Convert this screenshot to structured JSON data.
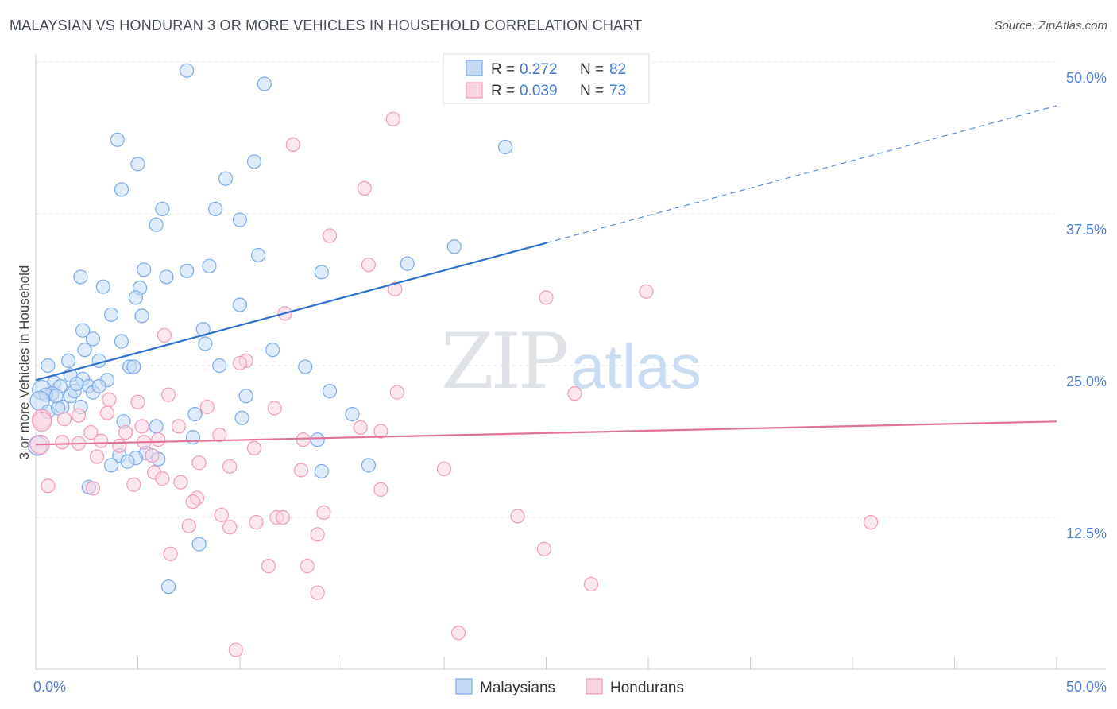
{
  "title": "MALAYSIAN VS HONDURAN 3 OR MORE VEHICLES IN HOUSEHOLD CORRELATION CHART",
  "source": "Source: ZipAtlas.com",
  "watermark": {
    "zip": "ZIP",
    "atlas": "atlas"
  },
  "chart_data": {
    "type": "scatter",
    "ylabel": "3 or more Vehicles in Household",
    "xlabel": "",
    "xlim": [
      0,
      50
    ],
    "ylim": [
      0,
      50
    ],
    "x_tick_labels": [
      "0.0%",
      "50.0%"
    ],
    "y_tick_labels": [
      "12.5%",
      "25.0%",
      "37.5%",
      "50.0%"
    ],
    "y_tick_values": [
      12.5,
      25,
      37.5,
      50
    ],
    "grid": true,
    "legend_position": "top-center",
    "stats": [
      {
        "r_label": "R =",
        "r": "0.272",
        "n_label": "N =",
        "n": "82"
      },
      {
        "r_label": "R =",
        "r": "0.039",
        "n_label": "N =",
        "n": "73"
      }
    ],
    "series": [
      {
        "name": "Malaysians",
        "color": "#7aaae8",
        "fill": "#c5d9f5",
        "trend": {
          "x0": 0,
          "y0": 23.8,
          "x1": 25,
          "y1": 35.1,
          "dash_to_x": 50,
          "dash_to_y": 46.4,
          "color": "#2f6fcd"
        },
        "points": [
          [
            7.4,
            49.3
          ],
          [
            11.2,
            48.2
          ],
          [
            4.0,
            43.6
          ],
          [
            5.0,
            41.6
          ],
          [
            10.7,
            41.8
          ],
          [
            9.3,
            40.4
          ],
          [
            23.0,
            43.0
          ],
          [
            4.2,
            39.5
          ],
          [
            6.2,
            37.9
          ],
          [
            8.8,
            37.9
          ],
          [
            5.9,
            36.6
          ],
          [
            10.0,
            37.0
          ],
          [
            20.5,
            34.8
          ],
          [
            18.2,
            33.4
          ],
          [
            10.9,
            34.1
          ],
          [
            8.5,
            33.2
          ],
          [
            7.4,
            32.8
          ],
          [
            5.3,
            32.9
          ],
          [
            14.0,
            32.7
          ],
          [
            6.4,
            32.3
          ],
          [
            2.2,
            32.3
          ],
          [
            3.3,
            31.5
          ],
          [
            5.1,
            31.4
          ],
          [
            4.9,
            30.6
          ],
          [
            10.0,
            30.0
          ],
          [
            3.7,
            29.2
          ],
          [
            5.2,
            29.1
          ],
          [
            2.3,
            27.9
          ],
          [
            8.2,
            28.0
          ],
          [
            2.8,
            27.2
          ],
          [
            4.2,
            27.0
          ],
          [
            8.3,
            26.8
          ],
          [
            2.4,
            26.3
          ],
          [
            11.6,
            26.3
          ],
          [
            1.6,
            25.4
          ],
          [
            3.1,
            25.4
          ],
          [
            0.6,
            25.0
          ],
          [
            4.6,
            24.9
          ],
          [
            4.8,
            24.9
          ],
          [
            9.0,
            25.0
          ],
          [
            13.2,
            24.9
          ],
          [
            1.7,
            24.2
          ],
          [
            2.3,
            23.9
          ],
          [
            3.5,
            23.8
          ],
          [
            0.9,
            23.6
          ],
          [
            2.6,
            23.3
          ],
          [
            1.2,
            23.3
          ],
          [
            0.3,
            23.0
          ],
          [
            0.8,
            22.7
          ],
          [
            2.8,
            22.8
          ],
          [
            14.4,
            22.9
          ],
          [
            0.5,
            22.6
          ],
          [
            1.7,
            22.5
          ],
          [
            10.3,
            22.5
          ],
          [
            0.2,
            22.1
          ],
          [
            1.3,
            21.6
          ],
          [
            0.6,
            21.2
          ],
          [
            15.5,
            21.0
          ],
          [
            7.8,
            21.0
          ],
          [
            10.1,
            20.7
          ],
          [
            2.2,
            21.6
          ],
          [
            1.1,
            21.5
          ],
          [
            5.9,
            20.0
          ],
          [
            4.3,
            20.4
          ],
          [
            7.7,
            19.1
          ],
          [
            13.8,
            18.9
          ],
          [
            0.1,
            18.4
          ],
          [
            5.4,
            17.8
          ],
          [
            4.1,
            17.6
          ],
          [
            4.9,
            17.4
          ],
          [
            6.0,
            17.3
          ],
          [
            3.7,
            16.8
          ],
          [
            16.3,
            16.8
          ],
          [
            14.0,
            16.3
          ],
          [
            2.6,
            15.0
          ],
          [
            8.0,
            10.3
          ],
          [
            6.5,
            6.8
          ],
          [
            1.9,
            22.9
          ],
          [
            3.1,
            23.3
          ],
          [
            4.5,
            17.1
          ],
          [
            1.0,
            22.5
          ],
          [
            2.0,
            23.5
          ]
        ]
      },
      {
        "name": "Hondurans",
        "color": "#f09ab8",
        "fill": "#fbd3e0",
        "trend": {
          "x0": 0,
          "y0": 18.5,
          "x1": 50,
          "y1": 20.4,
          "color": "#e0739a"
        },
        "points": [
          [
            17.5,
            45.3
          ],
          [
            12.6,
            43.2
          ],
          [
            16.1,
            39.6
          ],
          [
            14.4,
            35.7
          ],
          [
            16.3,
            33.3
          ],
          [
            17.6,
            31.3
          ],
          [
            25.0,
            30.6
          ],
          [
            29.9,
            31.1
          ],
          [
            12.2,
            29.3
          ],
          [
            6.3,
            27.5
          ],
          [
            10.3,
            25.4
          ],
          [
            6.5,
            22.6
          ],
          [
            11.7,
            21.5
          ],
          [
            17.7,
            22.8
          ],
          [
            26.4,
            22.7
          ],
          [
            8.4,
            21.6
          ],
          [
            3.6,
            22.2
          ],
          [
            3.5,
            21.1
          ],
          [
            1.4,
            20.6
          ],
          [
            0.3,
            20.6
          ],
          [
            2.1,
            20.9
          ],
          [
            5.2,
            20.0
          ],
          [
            7.0,
            20.0
          ],
          [
            15.9,
            19.9
          ],
          [
            16.9,
            19.6
          ],
          [
            2.7,
            19.5
          ],
          [
            4.4,
            19.5
          ],
          [
            9.0,
            19.3
          ],
          [
            1.3,
            18.7
          ],
          [
            2.1,
            18.6
          ],
          [
            3.2,
            18.8
          ],
          [
            5.3,
            18.7
          ],
          [
            6.0,
            18.9
          ],
          [
            4.1,
            18.4
          ],
          [
            13.1,
            18.9
          ],
          [
            10.7,
            18.2
          ],
          [
            0.2,
            18.5
          ],
          [
            5.7,
            17.6
          ],
          [
            3.0,
            17.5
          ],
          [
            8.0,
            17.0
          ],
          [
            9.5,
            16.7
          ],
          [
            13.0,
            16.4
          ],
          [
            5.8,
            16.2
          ],
          [
            6.2,
            15.7
          ],
          [
            20.0,
            16.5
          ],
          [
            7.1,
            15.4
          ],
          [
            4.8,
            15.2
          ],
          [
            2.8,
            14.9
          ],
          [
            16.9,
            14.8
          ],
          [
            0.6,
            15.1
          ],
          [
            7.9,
            14.1
          ],
          [
            7.7,
            13.8
          ],
          [
            9.1,
            12.7
          ],
          [
            10.8,
            12.1
          ],
          [
            11.8,
            12.5
          ],
          [
            12.1,
            12.5
          ],
          [
            14.1,
            12.9
          ],
          [
            23.6,
            12.6
          ],
          [
            9.5,
            11.7
          ],
          [
            7.5,
            11.8
          ],
          [
            13.8,
            11.1
          ],
          [
            40.9,
            12.1
          ],
          [
            24.9,
            9.9
          ],
          [
            6.6,
            9.5
          ],
          [
            11.4,
            8.5
          ],
          [
            13.3,
            8.5
          ],
          [
            13.8,
            6.3
          ],
          [
            27.2,
            7.0
          ],
          [
            20.7,
            3.0
          ],
          [
            9.8,
            1.6
          ],
          [
            0.3,
            20.4
          ],
          [
            5.0,
            22.0
          ],
          [
            10.0,
            25.2
          ]
        ]
      }
    ]
  }
}
